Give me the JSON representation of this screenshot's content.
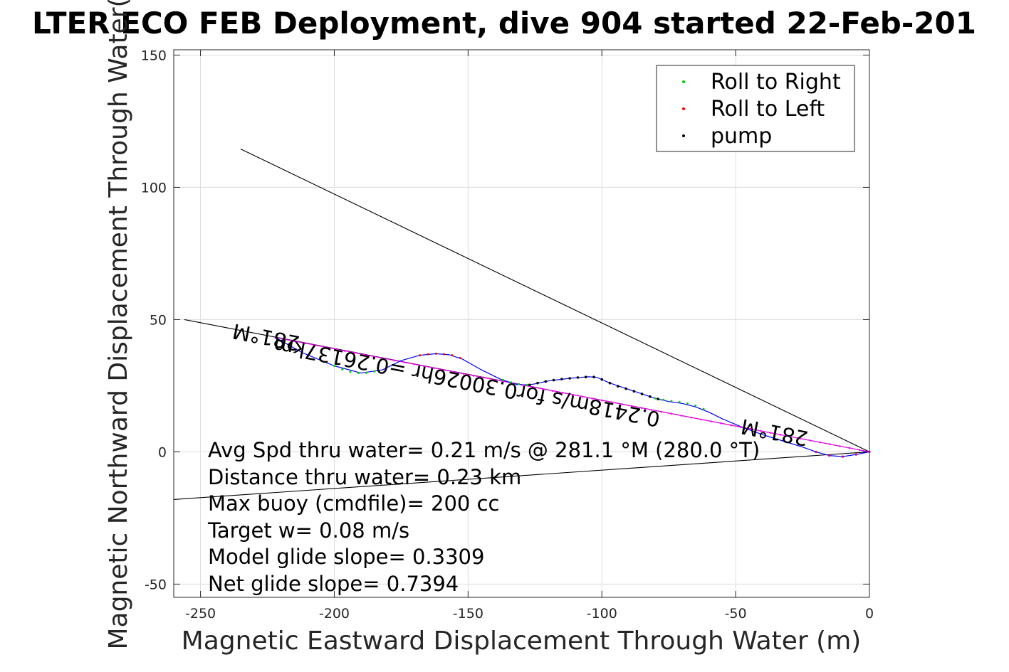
{
  "chart_data": {
    "type": "scatter",
    "title": "LTER ECO FEB Deployment, dive 904 started 22-Feb-201",
    "xlabel": "Magnetic Eastward Displacement Through Water (m)",
    "ylabel": "Magnetic Northward Displacement Through Water(",
    "xlim": [
      -260,
      0
    ],
    "ylim": [
      -55,
      152
    ],
    "xticks": [
      -250,
      -200,
      -150,
      -100,
      -50,
      0
    ],
    "yticks": [
      -50,
      0,
      50,
      100,
      150
    ],
    "grid": true,
    "legend_position": "top-right",
    "legend": [
      {
        "label": "Roll to Right",
        "color": "#00cc00"
      },
      {
        "label": "Roll to Left",
        "color": "#ff0000"
      },
      {
        "label": "pump",
        "color": "#000000"
      }
    ],
    "lines": [
      {
        "role": "reference",
        "color": "#000000",
        "x": [
          -235,
          0
        ],
        "y": [
          114.5,
          0
        ]
      },
      {
        "role": "reference",
        "color": "#000000",
        "x": [
          -260,
          0
        ],
        "y": [
          -18,
          0
        ]
      },
      {
        "role": "reference",
        "color": "#000000",
        "x": [
          -256,
          0
        ],
        "y": [
          50,
          0
        ]
      },
      {
        "role": "track-fit",
        "color": "#ff00ff",
        "x": [
          -222,
          0
        ],
        "y": [
          43.2,
          0
        ]
      },
      {
        "role": "track",
        "color": "#0000ff",
        "x": [
          -222,
          -212,
          -200,
          -190,
          -182,
          -175,
          -168,
          -162,
          -157,
          -152,
          -145,
          -138,
          -132,
          -127,
          -120,
          -112,
          -105,
          -102,
          -97,
          -90,
          -85,
          -80,
          -75,
          -70,
          -65,
          -60,
          -55,
          -48,
          -40,
          -32,
          -25,
          -20,
          -15,
          -10,
          -5,
          0
        ],
        "y": [
          43.2,
          37.5,
          32.5,
          29.8,
          31,
          34.5,
          36.5,
          37.1,
          36.7,
          35,
          31,
          27.5,
          25.5,
          25.3,
          26.8,
          27.8,
          28.4,
          28.2,
          26,
          23.6,
          21.9,
          20.2,
          19,
          18.3,
          17,
          15,
          12.5,
          9.5,
          6.5,
          4,
          1.8,
          0,
          -1.4,
          -1.8,
          -1,
          0
        ]
      }
    ],
    "markers": {
      "roll_right": {
        "color": "#00cc00",
        "x": [
          -200,
          -197,
          -194,
          -191,
          -188,
          -185,
          -137,
          -134,
          -131,
          -128,
          -80,
          -77,
          -74,
          -71,
          -68,
          -65,
          -62
        ],
        "y": [
          32.5,
          31.2,
          30.3,
          29.8,
          29.9,
          30.4,
          27.2,
          26.3,
          25.6,
          25.3,
          20.2,
          19.7,
          19.2,
          18.8,
          18.3,
          17.5,
          16.2
        ]
      },
      "roll_left": {
        "color": "#ff0000",
        "x": [
          -168,
          -165,
          -162,
          -159,
          -156,
          -153
        ],
        "y": [
          36.5,
          36.9,
          37.1,
          36.9,
          36.5,
          35.5
        ]
      },
      "pump": {
        "color": "#000000",
        "x": [
          -127,
          -124,
          -121,
          -118,
          -115,
          -112,
          -109,
          -106,
          -103,
          -100,
          -97,
          -94,
          -91,
          -88,
          -85,
          -82,
          -79
        ],
        "y": [
          25.3,
          26,
          26.6,
          27.1,
          27.5,
          27.8,
          28.1,
          28.3,
          28.3,
          27.4,
          26,
          24.8,
          23.9,
          22.9,
          21.9,
          20.9,
          20
        ]
      }
    },
    "annotations": [
      {
        "text": "281°M",
        "x": -225,
        "y": 46,
        "rotation_deg": 191
      },
      {
        "text": "0.2418m/s for0.30026hr =0.26137km",
        "x": -150,
        "y": 29,
        "rotation_deg": 191
      },
      {
        "text": "281°M",
        "x": -35,
        "y": 10,
        "rotation_deg": 191
      }
    ],
    "stats_text": [
      "Avg Spd thru water=  0.21 m/s @ 281.1 °M (280.0 °T)",
      "Distance thru water=  0.23 km",
      "Max buoy (cmdfile)= 200 cc",
      "Target w= 0.08 m/s",
      "Model glide slope= 0.3309",
      "Net glide slope= 0.7394"
    ]
  }
}
